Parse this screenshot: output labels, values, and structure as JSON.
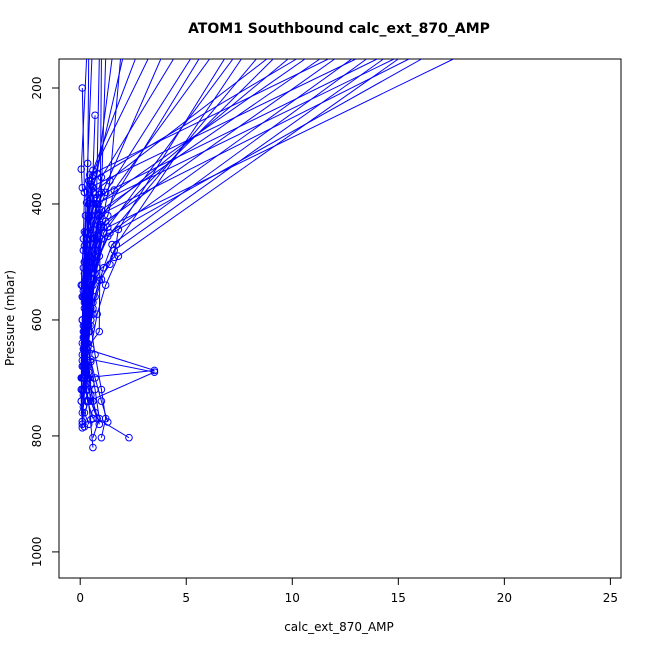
{
  "chart_data": {
    "type": "line",
    "title": "ATOM1 Southbound calc_ext_870_AMP",
    "xlabel": "calc_ext_870_AMP",
    "ylabel": "Pressure (mbar)",
    "xlim": [
      -1,
      25.5
    ],
    "ylim": [
      1045,
      150
    ],
    "y_reversed": true,
    "grid": false,
    "x_ticks": [
      0,
      5,
      10,
      15,
      20,
      25
    ],
    "y_ticks": [
      200,
      400,
      600,
      800,
      1000
    ],
    "color": "#0000ff",
    "series": [
      {
        "x": [
          0.3,
          0.05,
          0.1,
          0.4,
          0.2,
          0.15,
          0.3,
          0.1,
          0.25,
          0.2,
          0.35,
          0.15,
          0.5,
          0.2,
          0.4
        ],
        "y": [
          150,
          340,
          372,
          400,
          448,
          480,
          520,
          560,
          600,
          640,
          680,
          700,
          730,
          760,
          780
        ]
      },
      {
        "x": [
          1.5,
          0.8,
          0.6,
          0.3,
          0.5,
          0.2,
          0.4,
          0.3,
          0.6,
          0.2,
          0.5,
          0.7,
          0.9,
          0.6
        ],
        "y": [
          150,
          348,
          372,
          398,
          440,
          472,
          510,
          548,
          590,
          630,
          672,
          720,
          770,
          803
        ]
      },
      {
        "x": [
          2.6,
          0.6,
          0.5,
          0.9,
          0.4,
          0.3,
          0.2,
          0.3,
          0.5,
          0.7,
          1.0,
          1.2,
          1.0
        ],
        "y": [
          150,
          342,
          366,
          384,
          424,
          462,
          500,
          550,
          610,
          660,
          720,
          770,
          803
        ]
      },
      {
        "x": [
          3.2,
          0.4,
          0.7,
          1.0,
          0.6,
          0.3,
          0.1,
          0.4,
          0.2,
          0.3,
          0.5,
          0.8,
          2.3
        ],
        "y": [
          150,
          360,
          400,
          436,
          470,
          500,
          540,
          590,
          640,
          690,
          740,
          770,
          803
        ]
      },
      {
        "x": [
          4.4,
          1.0,
          0.8,
          0.5,
          0.3,
          0.2,
          0.35,
          0.15,
          0.5,
          3.5,
          0.4,
          0.6
        ],
        "y": [
          150,
          354,
          390,
          420,
          460,
          520,
          580,
          620,
          668,
          690,
          740,
          820
        ]
      },
      {
        "x": [
          5.2,
          1.2,
          0.9,
          0.6,
          0.4,
          0.25,
          0.5,
          0.3,
          0.7,
          1.0,
          1.3
        ],
        "y": [
          150,
          380,
          410,
          444,
          480,
          530,
          590,
          640,
          700,
          740,
          776
        ]
      },
      {
        "x": [
          6.1,
          1.6,
          1.3,
          0.8,
          0.5,
          0.3,
          0.2,
          0.4,
          0.6,
          0.9
        ],
        "y": [
          150,
          376,
          420,
          456,
          500,
          560,
          630,
          690,
          740,
          780
        ]
      },
      {
        "x": [
          6.8,
          1.8,
          1.6,
          0.7,
          0.4,
          0.3,
          0.15,
          0.35,
          0.6
        ],
        "y": [
          150,
          444,
          492,
          520,
          560,
          620,
          680,
          740,
          770
        ]
      },
      {
        "x": [
          7.6,
          1.7,
          1.4,
          0.9,
          0.6,
          0.4,
          0.2,
          0.3,
          0.5
        ],
        "y": [
          150,
          470,
          504,
          532,
          570,
          610,
          660,
          720,
          772
        ]
      },
      {
        "x": [
          8.3,
          1.3,
          0.7,
          0.4,
          0.3,
          0.2,
          0.4,
          0.7
        ],
        "y": [
          150,
          456,
          500,
          540,
          600,
          650,
          700,
          760
        ]
      },
      {
        "x": [
          9.1,
          1.1,
          0.8,
          0.5,
          0.35,
          0.2,
          0.4,
          0.6
        ],
        "y": [
          150,
          440,
          480,
          520,
          570,
          620,
          690,
          740
        ]
      },
      {
        "x": [
          9.8,
          0.9,
          0.6,
          0.4,
          0.25,
          0.15,
          0.3,
          0.5
        ],
        "y": [
          150,
          420,
          470,
          510,
          560,
          610,
          660,
          710
        ]
      },
      {
        "x": [
          10.6,
          0.8,
          0.5,
          0.35,
          0.2,
          0.1,
          0.3,
          0.4
        ],
        "y": [
          150,
          400,
          450,
          490,
          540,
          600,
          650,
          700
        ]
      },
      {
        "x": [
          11.3,
          1.0,
          0.7,
          0.45,
          0.3,
          0.2,
          0.35
        ],
        "y": [
          150,
          410,
          460,
          500,
          560,
          610,
          670
        ]
      },
      {
        "x": [
          12.0,
          1.2,
          0.8,
          0.5,
          0.3,
          0.15,
          0.3
        ],
        "y": [
          150,
          430,
          470,
          520,
          580,
          630,
          690
        ]
      },
      {
        "x": [
          12.8,
          1.4,
          0.9,
          0.6,
          0.4,
          0.2,
          0.35
        ],
        "y": [
          150,
          450,
          490,
          530,
          590,
          640,
          700
        ]
      },
      {
        "x": [
          13.5,
          1.5,
          1.1,
          0.7,
          0.45,
          0.25
        ],
        "y": [
          150,
          470,
          510,
          560,
          620,
          680
        ]
      },
      {
        "x": [
          14.3,
          1.6,
          1.0,
          0.6,
          0.35,
          0.2
        ],
        "y": [
          150,
          480,
          530,
          580,
          640,
          700
        ]
      },
      {
        "x": [
          15.0,
          1.8,
          1.2,
          0.8,
          0.5,
          0.3
        ],
        "y": [
          150,
          490,
          540,
          590,
          650,
          710
        ]
      },
      {
        "x": [
          16.1,
          1.0,
          0.6,
          0.35,
          0.2
        ],
        "y": [
          150,
          460,
          530,
          600,
          680
        ]
      },
      {
        "x": [
          17.6,
          1.3,
          0.8,
          0.5,
          0.3
        ],
        "y": [
          150,
          440,
          510,
          580,
          650
        ]
      },
      {
        "x": [
          0.7,
          0.6,
          0.4,
          0.2,
          0.1
        ],
        "y": [
          247,
          350,
          420,
          500,
          560
        ]
      },
      {
        "x": [
          0.1,
          0.2,
          0.15,
          0.05,
          0.2,
          0.1
        ],
        "y": [
          200,
          380,
          460,
          540,
          620,
          700
        ]
      },
      {
        "x": [
          0.55,
          0.35,
          0.25,
          0.15,
          0.1,
          0.05,
          0.2
        ],
        "y": [
          150,
          330,
          420,
          510,
          600,
          700,
          784
        ]
      },
      {
        "x": [
          2.0,
          0.5,
          0.3,
          0.2,
          0.1,
          0.05,
          0.1
        ],
        "y": [
          150,
          390,
          470,
          560,
          640,
          720,
          786
        ]
      },
      {
        "x": [
          3.8,
          0.7,
          0.45,
          0.25,
          0.15,
          0.05
        ],
        "y": [
          150,
          410,
          490,
          570,
          650,
          740
        ]
      },
      {
        "x": [
          5.6,
          0.9,
          0.55,
          0.3,
          0.2,
          0.1
        ],
        "y": [
          150,
          430,
          510,
          590,
          670,
          760
        ]
      },
      {
        "x": [
          7.2,
          1.1,
          0.65,
          0.35,
          0.25,
          0.1
        ],
        "y": [
          150,
          450,
          530,
          610,
          690,
          775
        ]
      },
      {
        "x": [
          8.8,
          0.6,
          0.4,
          0.2,
          0.1
        ],
        "y": [
          150,
          380,
          480,
          580,
          680
        ]
      },
      {
        "x": [
          10.2,
          0.5,
          0.3,
          0.15,
          0.1
        ],
        "y": [
          150,
          360,
          460,
          560,
          660
        ]
      },
      {
        "x": [
          11.7,
          0.45,
          0.25,
          0.15
        ],
        "y": [
          150,
          350,
          450,
          550
        ]
      },
      {
        "x": [
          13.0,
          0.55,
          0.35,
          0.2,
          0.1
        ],
        "y": [
          150,
          370,
          470,
          570,
          670
        ]
      },
      {
        "x": [
          14.0,
          0.65,
          0.4,
          0.25,
          0.1
        ],
        "y": [
          150,
          390,
          500,
          600,
          700
        ]
      },
      {
        "x": [
          14.8,
          0.75,
          0.5,
          0.3,
          0.15
        ],
        "y": [
          150,
          400,
          510,
          620,
          720
        ]
      },
      {
        "x": [
          15.5,
          0.85,
          0.55,
          0.3,
          0.15
        ],
        "y": [
          150,
          420,
          520,
          640,
          730
        ]
      },
      {
        "x": [
          1.0,
          0.9,
          0.3,
          3.5,
          0.2,
          0.1
        ],
        "y": [
          150,
          620,
          650,
          687,
          700,
          720
        ]
      },
      {
        "x": [
          0.4,
          0.3,
          0.2,
          0.1,
          0.05,
          0.1
        ],
        "y": [
          150,
          600,
          650,
          700,
          740,
          780
        ]
      },
      {
        "x": [
          0.9,
          0.7,
          0.5,
          0.3,
          0.15
        ],
        "y": [
          150,
          520,
          600,
          680,
          750
        ]
      },
      {
        "x": [
          1.2,
          1.0,
          0.8,
          0.6,
          0.4,
          0.2
        ],
        "y": [
          150,
          380,
          460,
          540,
          620,
          700
        ]
      },
      {
        "x": [
          1.9,
          1.4,
          1.0,
          0.7,
          0.4,
          0.2
        ],
        "y": [
          150,
          360,
          440,
          520,
          610,
          700
        ]
      }
    ]
  }
}
